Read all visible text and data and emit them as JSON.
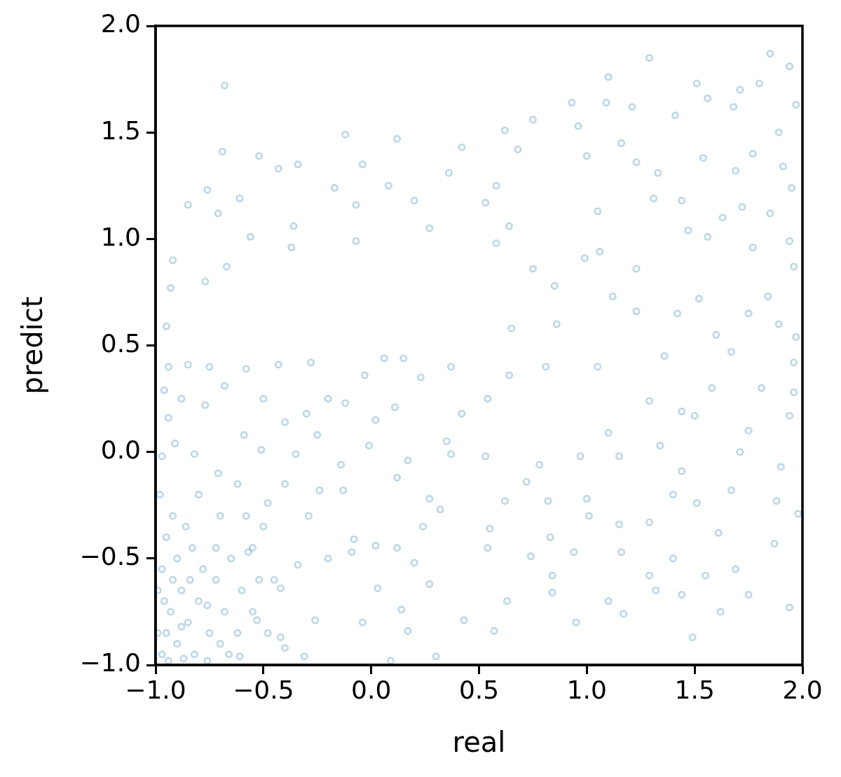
{
  "chart_data": {
    "type": "scatter",
    "xlabel": "real",
    "ylabel": "predict",
    "marker": "circle",
    "color": "#1f77b4",
    "xlim": [
      -1,
      2
    ],
    "ylim": [
      -1,
      2
    ],
    "xticks": [
      {
        "value": -1,
        "label": "−1.0"
      },
      {
        "value": -0.5,
        "label": "−0.5"
      },
      {
        "value": 0,
        "label": "0.0"
      },
      {
        "value": 0.5,
        "label": "0.5"
      },
      {
        "value": 1,
        "label": "1.0"
      },
      {
        "value": 1.5,
        "label": "1.5"
      },
      {
        "value": 2,
        "label": "2.0"
      }
    ],
    "yticks": [
      {
        "value": -1,
        "label": "−1.0"
      },
      {
        "value": -0.5,
        "label": "−0.5"
      },
      {
        "value": 0,
        "label": "0.0"
      },
      {
        "value": 0.5,
        "label": "0.5"
      },
      {
        "value": 1,
        "label": "1.0"
      },
      {
        "value": 1.5,
        "label": "1.5"
      },
      {
        "value": 2,
        "label": "2.0"
      }
    ],
    "x": [
      -0.68,
      -0.12,
      0.12,
      0.42,
      -0.69,
      -0.52,
      -0.34,
      -0.43,
      -0.04,
      0.36,
      -0.76,
      -0.85,
      -0.61,
      -0.17,
      0.08,
      0.2,
      -0.71,
      -0.56,
      -0.36,
      -0.07,
      0.27,
      -0.92,
      -0.93,
      -0.37,
      -0.07,
      -0.95,
      -0.67,
      -0.77,
      1.85,
      1.29,
      1.1,
      1.94,
      1.51,
      1.56,
      1.71,
      0.93,
      1.09,
      1.21,
      0.62,
      0.75,
      0.96,
      1.97,
      1.8,
      0.58,
      0.68,
      0.53,
      0.64,
      0.58,
      1.0,
      1.16,
      1.41,
      1.68,
      1.89,
      1.77,
      1.23,
      1.33,
      1.54,
      1.69,
      1.95,
      1.91,
      1.72,
      1.85,
      1.94,
      1.77,
      1.96,
      1.84,
      1.89,
      1.97,
      1.6,
      1.56,
      1.63,
      1.47,
      1.44,
      1.31,
      1.05,
      1.06,
      1.23,
      1.23,
      1.42,
      1.52,
      0.99,
      0.85,
      0.86,
      1.12,
      0.65,
      0.75,
      1.75,
      -0.94,
      -0.85,
      -0.75,
      -0.96,
      -0.94,
      -0.88,
      -0.97,
      -0.91,
      -0.82,
      -0.77,
      -0.68,
      -0.59,
      -0.71,
      -0.58,
      -0.5,
      -0.43,
      -0.51,
      -0.4,
      -0.35,
      -0.3,
      -0.25,
      -0.2,
      -0.28,
      -0.12,
      -0.03,
      0.06,
      0.15,
      0.23,
      0.11,
      0.02,
      0.37,
      0.42,
      0.35,
      -0.01,
      -0.14,
      0.17,
      0.37,
      0.54,
      0.64,
      0.81,
      1.05,
      1.36,
      0.53,
      0.78,
      0.97,
      1.15,
      1.34,
      1.1,
      1.29,
      1.44,
      1.58,
      1.81,
      1.96,
      1.67,
      1.96,
      1.75,
      1.94,
      1.5,
      0.09,
      0.3,
      0.17,
      0.14,
      0.43,
      0.27,
      0.2,
      -0.04,
      -0.26,
      -0.31,
      0.12,
      0.03,
      -0.09,
      -0.2,
      0.32,
      0.24,
      0.02,
      -0.08,
      -0.29,
      -0.13,
      0.12,
      0.27,
      -0.24,
      -0.4,
      -0.48,
      0.57,
      0.95,
      1.49,
      1.94,
      1.17,
      1.1,
      1.62,
      1.75,
      1.44,
      1.32,
      0.63,
      0.84,
      0.84,
      0.74,
      0.94,
      1.16,
      1.29,
      1.4,
      1.55,
      1.69,
      1.61,
      1.87,
      1.98,
      1.88,
      1.67,
      1.51,
      1.44,
      1.4,
      1.29,
      1.15,
      1.01,
      0.83,
      0.54,
      0.55,
      1.9,
      1.71,
      0.72,
      0.62,
      0.82,
      1.0,
      -0.97,
      -0.95,
      -0.93,
      -0.9,
      -0.88,
      -0.85,
      -0.82,
      -0.8,
      -0.78,
      -0.75,
      -0.72,
      -0.7,
      -0.68,
      -0.65,
      -0.62,
      -0.6,
      -0.97,
      -0.95,
      -0.92,
      -0.9,
      -0.86,
      -0.83,
      -0.98,
      -0.99,
      -0.96,
      -0.94,
      -0.87,
      -0.76,
      -0.55,
      -0.52,
      -0.48,
      -0.55,
      -0.5,
      -0.58,
      -0.57,
      -0.53,
      -0.42,
      -0.4,
      -0.61,
      -0.45,
      -0.34,
      -0.42,
      -0.99,
      -0.92,
      -0.88,
      -0.84,
      -0.76,
      -0.72,
      -0.66,
      -0.8,
      -0.7,
      -0.62
    ],
    "values": [
      1.72,
      1.49,
      1.47,
      1.43,
      1.41,
      1.39,
      1.35,
      1.33,
      1.35,
      1.31,
      1.23,
      1.16,
      1.19,
      1.24,
      1.25,
      1.18,
      1.12,
      1.01,
      1.06,
      1.16,
      1.05,
      0.9,
      0.77,
      0.96,
      0.99,
      0.59,
      0.87,
      0.8,
      1.87,
      1.85,
      1.76,
      1.81,
      1.73,
      1.66,
      1.7,
      1.64,
      1.64,
      1.62,
      1.51,
      1.56,
      1.53,
      1.63,
      1.73,
      1.25,
      1.42,
      1.17,
      1.06,
      0.98,
      1.39,
      1.45,
      1.58,
      1.62,
      1.5,
      1.4,
      1.36,
      1.31,
      1.38,
      1.32,
      1.24,
      1.34,
      1.15,
      1.12,
      0.99,
      0.96,
      0.87,
      0.73,
      0.6,
      0.54,
      0.55,
      1.01,
      1.1,
      1.04,
      1.18,
      1.19,
      1.13,
      0.94,
      0.86,
      0.66,
      0.65,
      0.72,
      0.91,
      0.78,
      0.6,
      0.73,
      0.58,
      0.86,
      0.65,
      0.4,
      0.41,
      0.4,
      0.29,
      0.16,
      0.25,
      -0.02,
      0.04,
      -0.01,
      0.22,
      0.31,
      0.08,
      -0.1,
      0.39,
      0.25,
      0.41,
      0.01,
      0.14,
      -0.01,
      0.18,
      0.08,
      0.25,
      0.42,
      0.23,
      0.36,
      0.44,
      0.44,
      0.35,
      0.21,
      0.15,
      0.4,
      0.18,
      0.05,
      0.03,
      -0.06,
      -0.04,
      -0.01,
      0.25,
      0.36,
      0.4,
      0.4,
      0.45,
      -0.02,
      -0.06,
      -0.02,
      -0.02,
      0.03,
      0.09,
      0.24,
      0.19,
      0.3,
      0.3,
      0.42,
      0.47,
      0.28,
      0.1,
      0.17,
      0.17,
      -0.98,
      -0.96,
      -0.84,
      -0.74,
      -0.79,
      -0.62,
      -0.52,
      -0.8,
      -0.79,
      -0.96,
      -0.45,
      -0.64,
      -0.47,
      -0.5,
      -0.27,
      -0.35,
      -0.44,
      -0.41,
      -0.3,
      -0.18,
      -0.12,
      -0.22,
      -0.18,
      -0.15,
      -0.24,
      -0.84,
      -0.8,
      -0.87,
      -0.73,
      -0.76,
      -0.7,
      -0.75,
      -0.67,
      -0.67,
      -0.65,
      -0.7,
      -0.66,
      -0.58,
      -0.49,
      -0.47,
      -0.47,
      -0.58,
      -0.5,
      -0.58,
      -0.55,
      -0.38,
      -0.43,
      -0.29,
      -0.23,
      -0.18,
      -0.24,
      -0.09,
      -0.2,
      -0.33,
      -0.34,
      -0.3,
      -0.4,
      -0.45,
      -0.36,
      -0.07,
      0.0,
      -0.14,
      -0.23,
      -0.23,
      -0.22,
      -0.95,
      -0.85,
      -0.75,
      -0.9,
      -0.65,
      -0.8,
      -0.95,
      -0.7,
      -0.55,
      -0.85,
      -0.6,
      -0.9,
      -0.75,
      -0.5,
      -0.85,
      -0.65,
      -0.55,
      -0.4,
      -0.3,
      -0.5,
      -0.35,
      -0.45,
      -0.2,
      -0.65,
      -0.7,
      -0.98,
      -0.97,
      -0.98,
      -0.75,
      -0.6,
      -0.85,
      -0.45,
      -0.35,
      -0.3,
      -0.47,
      -0.79,
      -0.87,
      -0.92,
      -0.96,
      -0.6,
      -0.53,
      -0.64,
      -0.85,
      -0.6,
      -0.82,
      -0.6,
      -0.72,
      -0.45,
      -0.95,
      -0.2,
      -0.3,
      -0.15
    ]
  }
}
